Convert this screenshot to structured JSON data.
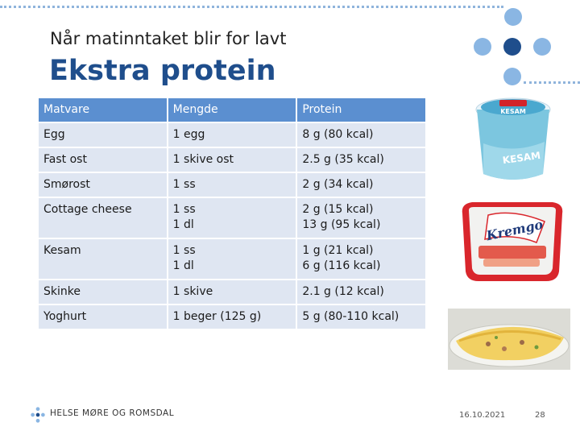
{
  "slide": {
    "subtitle": "Når matinntaket blir for lavt",
    "title": "Ekstra protein"
  },
  "table": {
    "headers": [
      "Matvare",
      "Mengde",
      "Protein"
    ],
    "rows": [
      {
        "food": "Egg",
        "amount": [
          "1 egg"
        ],
        "protein": [
          "8 g (80 kcal)"
        ]
      },
      {
        "food": "Fast ost",
        "amount": [
          "1 skive ost"
        ],
        "protein": [
          "2.5 g (35 kcal)"
        ]
      },
      {
        "food": "Smørost",
        "amount": [
          "1 ss"
        ],
        "protein": [
          "2 g (34 kcal)"
        ]
      },
      {
        "food": "Cottage cheese",
        "amount": [
          "1 ss",
          "1 dl"
        ],
        "protein": [
          "2 g (15 kcal)",
          "13 g (95 kcal)"
        ]
      },
      {
        "food": "Kesam",
        "amount": [
          "1 ss",
          "1 dl"
        ],
        "protein": [
          "1 g (21 kcal)",
          "6 g (116 kcal)"
        ]
      },
      {
        "food": "Skinke",
        "amount": [
          "1 skive"
        ],
        "protein": [
          "2.1 g (12 kcal)"
        ]
      },
      {
        "food": "Yoghurt",
        "amount": [
          "1 beger (125 g)"
        ],
        "protein": [
          "5 g (80-110 kcal)"
        ]
      }
    ]
  },
  "images": {
    "tub1_brand": "KESAM",
    "tub2_brand": "Kremgo"
  },
  "footer": {
    "logo_text": "HELSE MØRE OG ROMSDAL",
    "date": "16.10.2021",
    "page": "28"
  },
  "colors": {
    "accent": "#1f4e8c",
    "light_accent": "#8ab6e3",
    "table_header": "#5b8fd0",
    "table_row": "#dfe6f2"
  }
}
